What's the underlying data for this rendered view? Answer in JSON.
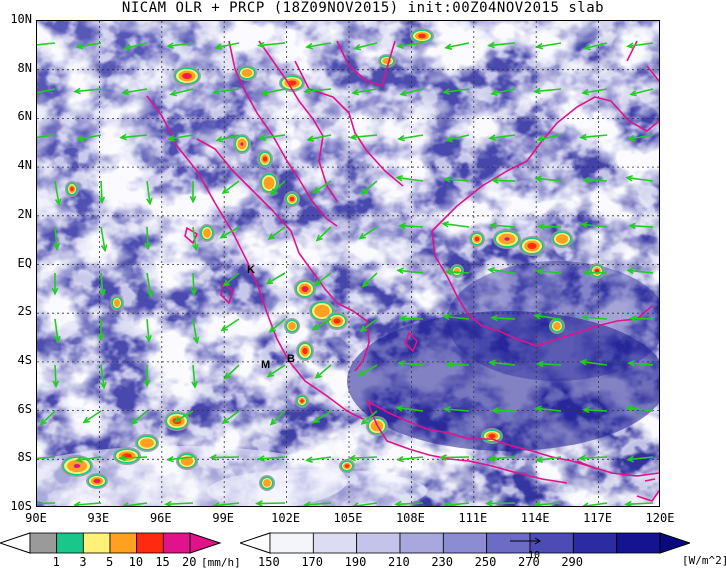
{
  "title": "NICAM OLR + PRCP (18Z09NOV2015) init:00Z04NOV2015 slab",
  "y_ticks": [
    "10N",
    "8N",
    "6N",
    "4N",
    "2N",
    "EQ",
    "2S",
    "4S",
    "6S",
    "8S",
    "10S"
  ],
  "x_ticks": [
    "90E",
    "93E",
    "96E",
    "99E",
    "102E",
    "105E",
    "108E",
    "111E",
    "114E",
    "117E",
    "120E"
  ],
  "station_labels": [
    "K",
    "M",
    "B"
  ],
  "prcp_legend": {
    "unit": "[mm/h]",
    "labels": [
      "1",
      "3",
      "5",
      "10",
      "15",
      "20"
    ],
    "colors": [
      "#9a9a9a",
      "#19c78a",
      "#fff07a",
      "#ffa020",
      "#ff2a10",
      "#e0138a"
    ]
  },
  "olr_legend": {
    "unit": "[W/m^2]",
    "labels": [
      "150",
      "170",
      "190",
      "210",
      "230",
      "250",
      "270",
      "290"
    ],
    "colors": [
      "#f4f4fb",
      "#dcdcf2",
      "#c4c4ea",
      "#a8a8de",
      "#8c8cd2",
      "#6c6cc4",
      "#4c4cb4",
      "#2c2ca2",
      "#141490"
    ]
  },
  "vector_reference_label": "10",
  "colors": {
    "coast": "#e0138a",
    "wind": "#22cc22",
    "cloud_dark": "#3a3ab0"
  }
}
